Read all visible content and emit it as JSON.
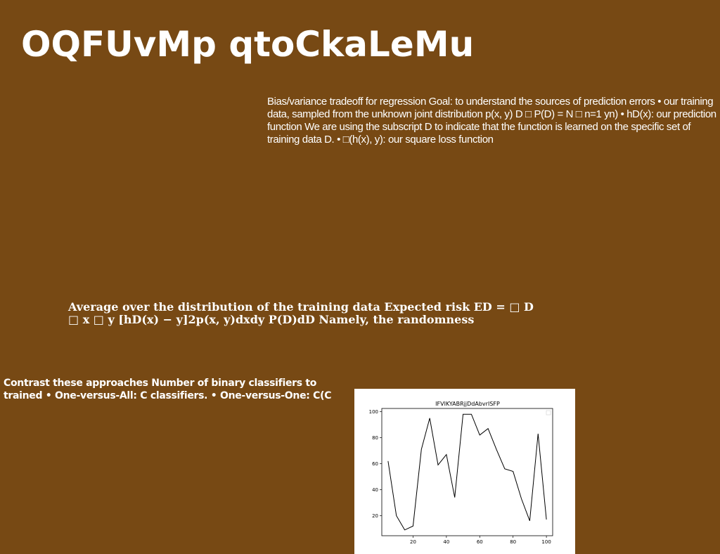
{
  "title": "OQFUvMp qtoCkaLeMu",
  "paragraph1": "Bias/variance tradeoff for regression Goal: to understand the sources of prediction errors • our training data, sampled from the unknown joint distribution p(x, y) D □ P(D) = N □ n=1 yn) • hD(x): our prediction function We are using the subscript D to indicate that the function is learned on the specific set of training data D. • □(h(x), y): our square loss function",
  "paragraph2": "Average over the distribution of the training data Expected risk ED = □ D □ x □ y [hD(x) − y]2p(x, y)dxdy P(D)dD Namely, the randomness",
  "paragraph3": {
    "line1": "Contrast these approaches Number of binary classifiers to",
    "line2": "trained • One-versus-All: C classifiers. • One-versus-One: C(C"
  },
  "chart_data": {
    "type": "line",
    "title": "IFVIKYABRjjDdAbvrISFP",
    "xlabel": "",
    "ylabel": "",
    "x": [
      5,
      10,
      15,
      20,
      25,
      30,
      35,
      40,
      45,
      50,
      55,
      60,
      65,
      70,
      75,
      80,
      85,
      90,
      95,
      100
    ],
    "series": [
      {
        "values": [
          62,
          20,
          9,
          12,
          71,
          95,
          59,
          67,
          34,
          98,
          98,
          82,
          87,
          71,
          56,
          54,
          33,
          16,
          83,
          17
        ]
      }
    ],
    "xlim": [
      1.25,
      103.75
    ],
    "ylim": [
      4.55,
      102.45
    ],
    "xticks": [
      20,
      40,
      60,
      80,
      100
    ],
    "yticks": [
      20,
      40,
      60,
      80,
      100
    ],
    "grid": false,
    "legend": "top-right",
    "line_color": "#000000"
  }
}
